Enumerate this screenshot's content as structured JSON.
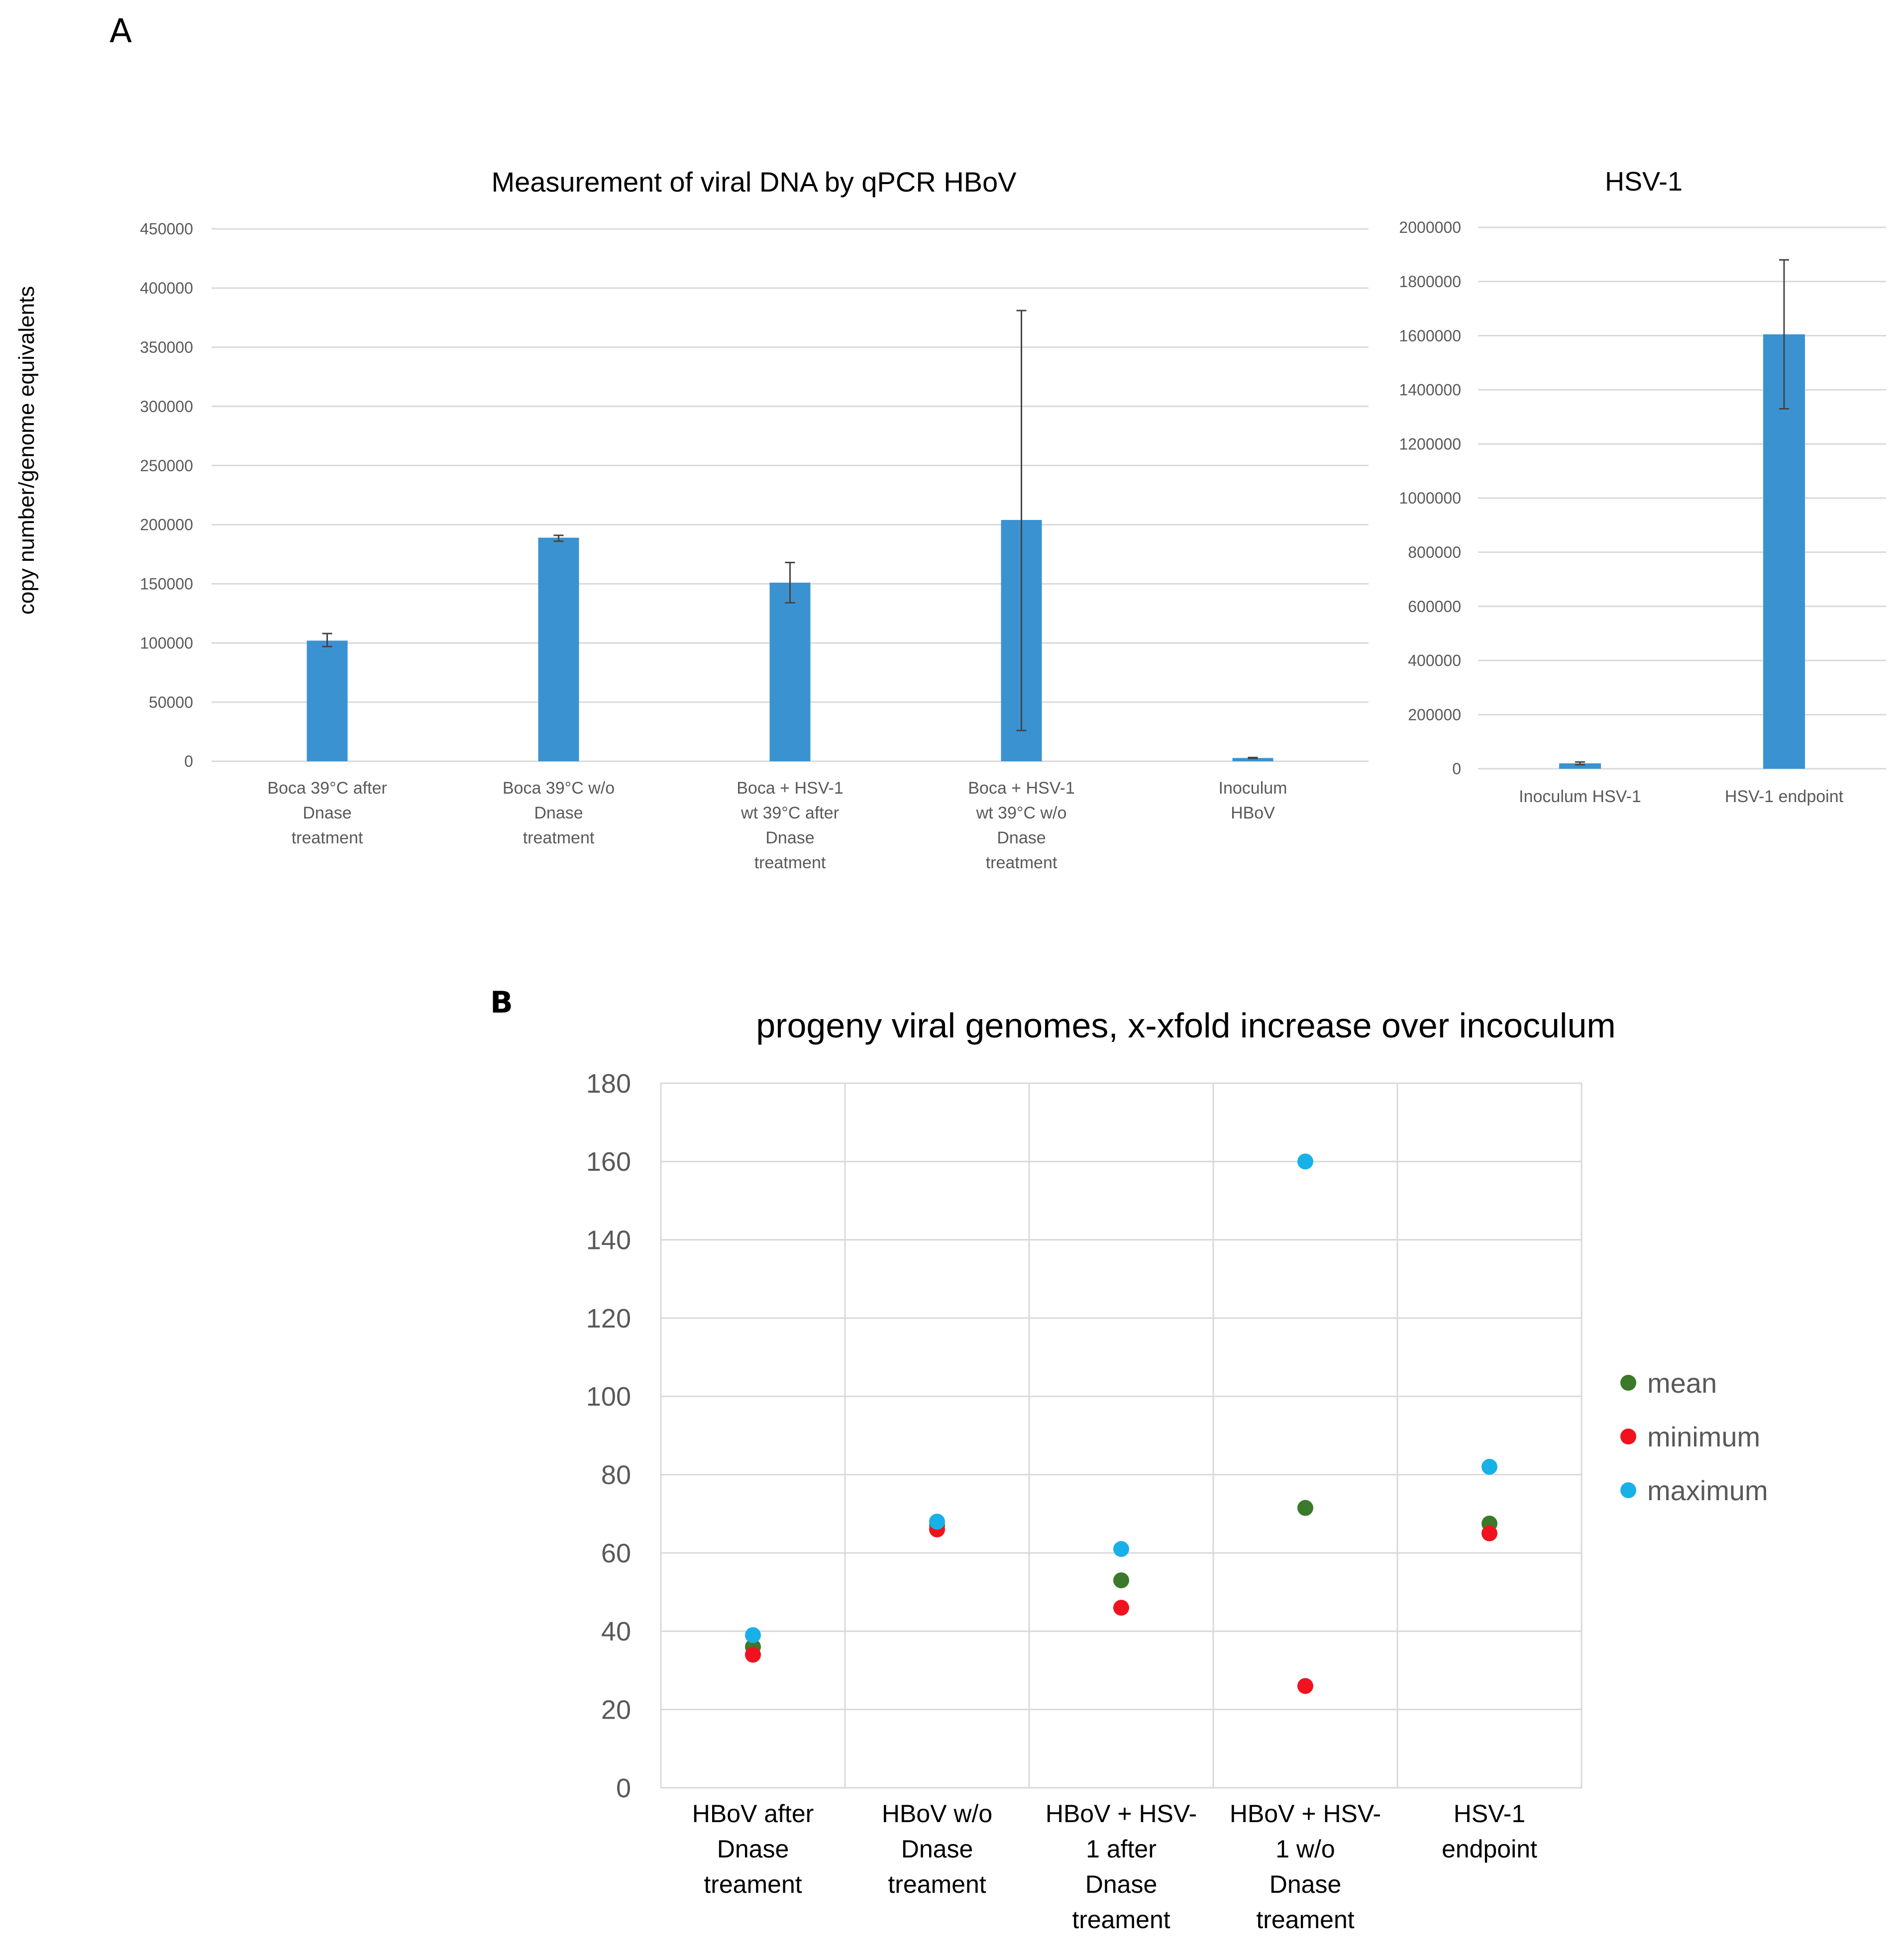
{
  "panels": {
    "a_label": "A",
    "b_label": "B"
  },
  "colors": {
    "bar": "#3a93d0",
    "mean": "#3a7a2a",
    "minimum": "#f0131f",
    "maximum": "#17b1e8",
    "grid": "#d9d9d9",
    "text": "#595959"
  },
  "chart_data": [
    {
      "id": "hbov",
      "type": "bar",
      "title": "Measurement of viral DNA by qPCR HBoV",
      "ylabel": "copy number/genome equivalents",
      "xlabel": "",
      "ylim": [
        0,
        450000
      ],
      "yticks": [
        "0",
        "50000",
        "100000",
        "150000",
        "200000",
        "250000",
        "300000",
        "350000",
        "400000",
        "450000"
      ],
      "categories": [
        [
          "Boca 39°C after",
          "Dnase",
          "treatment"
        ],
        [
          "Boca 39°C w/o",
          "Dnase",
          "treatment"
        ],
        [
          "Boca + HSV-1",
          "wt 39°C after",
          "Dnase",
          "treatment"
        ],
        [
          "Boca + HSV-1",
          "wt 39°C w/o",
          "Dnase",
          "treatment"
        ],
        [
          "Inoculum",
          "HBoV"
        ]
      ],
      "values": [
        102000,
        189000,
        151000,
        204000,
        2800
      ],
      "error_low": [
        97000,
        186000,
        134000,
        26000,
        2400
      ],
      "error_high": [
        108000,
        191000,
        168000,
        381000,
        3200
      ],
      "grid": true
    },
    {
      "id": "hsv",
      "type": "bar",
      "title": "HSV-1",
      "ylim": [
        0,
        2000000
      ],
      "yticks": [
        "0",
        "200000",
        "400000",
        "600000",
        "800000",
        "1000000",
        "1200000",
        "1400000",
        "1600000",
        "1800000",
        "2000000"
      ],
      "categories": [
        [
          "Inoculum HSV-1"
        ],
        [
          "HSV-1 endpoint"
        ]
      ],
      "values": [
        20000,
        1605000
      ],
      "error_low": [
        15000,
        1330000
      ],
      "error_high": [
        25000,
        1880000
      ],
      "grid": true
    },
    {
      "id": "fold",
      "type": "scatter",
      "title": "progeny viral genomes, x-xfold increase over incoculum",
      "ylim": [
        0,
        180
      ],
      "yticks": [
        "0",
        "20",
        "40",
        "60",
        "80",
        "100",
        "120",
        "140",
        "160",
        "180"
      ],
      "categories": [
        [
          "HBoV after",
          "Dnase",
          "treament"
        ],
        [
          "HBoV w/o",
          "Dnase",
          "treament"
        ],
        [
          "HBoV + HSV-",
          "1 after",
          "Dnase",
          "treament"
        ],
        [
          "HBoV + HSV-",
          "1 w/o",
          "Dnase",
          "treament"
        ],
        [
          "HSV-1",
          "endpoint"
        ]
      ],
      "series": [
        {
          "name": "mean",
          "values": [
            36,
            67,
            53,
            71.5,
            67.5
          ]
        },
        {
          "name": "minimum",
          "values": [
            34,
            66,
            46,
            26,
            65
          ]
        },
        {
          "name": "maximum",
          "values": [
            39,
            68,
            61,
            160,
            82
          ]
        }
      ],
      "legend": "right",
      "grid": true
    }
  ]
}
